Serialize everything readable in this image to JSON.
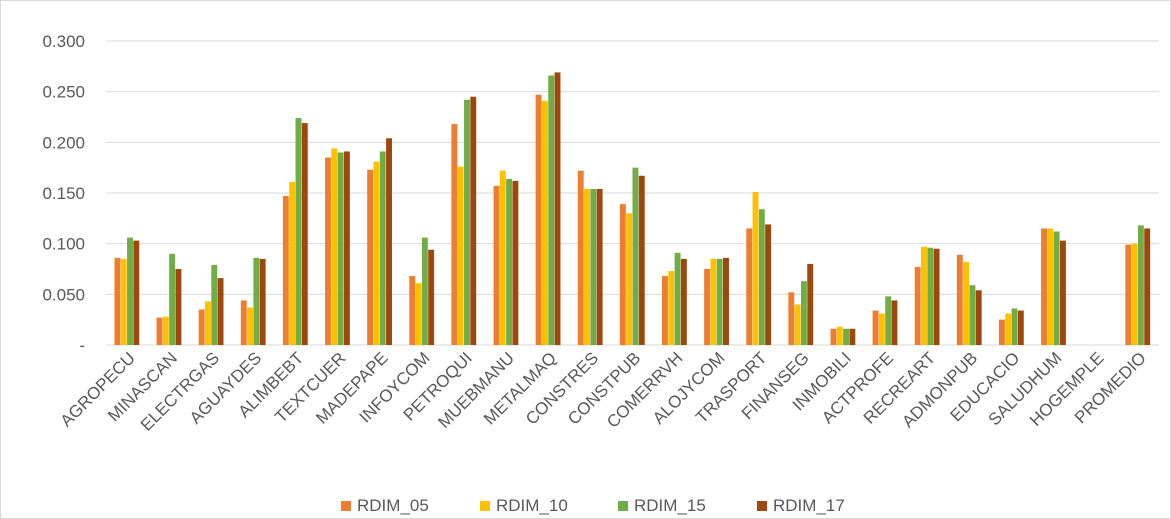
{
  "chart_data": {
    "type": "bar",
    "categories": [
      "AGROPECU",
      "MINASCAN",
      "ELECTRGAS",
      "AGUAYDES",
      "ALIMBEBT",
      "TEXTCUER",
      "MADEPAPE",
      "INFOYCOM",
      "PETROQUI",
      "MUEBMANU",
      "METALMAQ",
      "CONSTRES",
      "CONSTPUB",
      "COMERRVH",
      "ALOJYCOM",
      "TRASPORT",
      "FINANSEG",
      "INMOBILI",
      "ACTPROFE",
      "RECREART",
      "ADMONPUB",
      "EDUCACIO",
      "SALUDHUM",
      "HOGEMPLE",
      "PROMEDIO"
    ],
    "series": [
      {
        "name": "RDIM_05",
        "color": "#ED7D31",
        "values": [
          0.086,
          0.027,
          0.035,
          0.044,
          0.147,
          0.185,
          0.173,
          0.068,
          0.218,
          0.157,
          0.247,
          0.172,
          0.139,
          0.068,
          0.075,
          0.115,
          0.052,
          0.016,
          0.034,
          0.077,
          0.089,
          0.025,
          0.115,
          0.0,
          0.099
        ]
      },
      {
        "name": "RDIM_10",
        "color": "#FFC000",
        "values": [
          0.085,
          0.028,
          0.043,
          0.037,
          0.161,
          0.194,
          0.181,
          0.061,
          0.176,
          0.172,
          0.241,
          0.154,
          0.13,
          0.073,
          0.085,
          0.151,
          0.04,
          0.018,
          0.031,
          0.097,
          0.082,
          0.031,
          0.115,
          0.0,
          0.1
        ]
      },
      {
        "name": "RDIM_15",
        "color": "#70AD47",
        "values": [
          0.106,
          0.09,
          0.079,
          0.086,
          0.224,
          0.19,
          0.191,
          0.106,
          0.242,
          0.164,
          0.266,
          0.154,
          0.175,
          0.091,
          0.085,
          0.134,
          0.063,
          0.016,
          0.048,
          0.096,
          0.059,
          0.036,
          0.112,
          0.0,
          0.118
        ]
      },
      {
        "name": "RDIM_17",
        "color": "#9E480E",
        "values": [
          0.103,
          0.075,
          0.066,
          0.085,
          0.219,
          0.191,
          0.204,
          0.094,
          0.245,
          0.162,
          0.269,
          0.154,
          0.167,
          0.085,
          0.086,
          0.119,
          0.08,
          0.016,
          0.044,
          0.095,
          0.054,
          0.034,
          0.103,
          0.0,
          0.115
        ]
      }
    ],
    "ylim": [
      0,
      0.3
    ],
    "yticks": [
      {
        "value": 0.3,
        "label": "0.300"
      },
      {
        "value": 0.25,
        "label": "0.250"
      },
      {
        "value": 0.2,
        "label": "0.200"
      },
      {
        "value": 0.15,
        "label": "0.150"
      },
      {
        "value": 0.1,
        "label": "0.100"
      },
      {
        "value": 0.05,
        "label": "0.050"
      },
      {
        "value": 0,
        "label": "-"
      }
    ],
    "grid": true,
    "legend_position": "bottom",
    "title": "",
    "xlabel": "",
    "ylabel": ""
  }
}
